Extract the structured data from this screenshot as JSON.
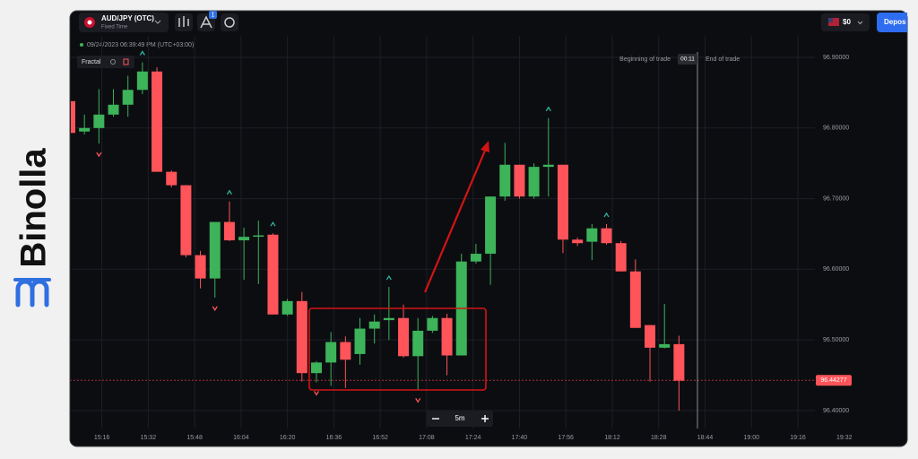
{
  "logo": "Binolla",
  "header": {
    "pair": "AUD/JPY (OTC)",
    "mode": "Fixed Time",
    "badge": "1",
    "balance": "$0",
    "deposit": "Depos"
  },
  "timestamp": "09/24/2023 06:39:49 PM (UTC+03:00)",
  "indicator": "Fractal",
  "trade": {
    "begin": "Beginning of trade",
    "timer": "00:11",
    "end": "End of trade"
  },
  "timeframe": "5m",
  "chart_data": {
    "type": "candlestick",
    "x": [
      905,
      910,
      915,
      920,
      925,
      930,
      935,
      940,
      945,
      950,
      955,
      960,
      965,
      970,
      975,
      980,
      985,
      990,
      995,
      1000,
      1005,
      1010,
      1015,
      1020,
      1025,
      1030,
      1035,
      1040,
      1045,
      1050,
      1055,
      1060,
      1065,
      1070,
      1075,
      1080,
      1085,
      1090,
      1095,
      1100,
      1105,
      1110,
      1115
    ],
    "open": [
      96.838,
      96.795,
      96.8,
      96.819,
      96.833,
      96.854,
      96.88,
      96.738,
      96.719,
      96.62,
      96.587,
      96.667,
      96.641,
      96.648,
      96.649,
      96.536,
      96.555,
      96.453,
      96.468,
      96.497,
      96.48,
      96.516,
      96.528,
      96.531,
      96.477,
      96.513,
      96.531,
      96.478,
      96.611,
      96.622,
      96.703,
      96.748,
      96.703,
      96.745,
      96.748,
      96.642,
      96.639,
      96.658,
      96.637,
      96.597,
      96.521,
      96.489,
      96.494
    ],
    "high": [
      96.861,
      96.819,
      96.855,
      96.855,
      96.874,
      96.893,
      96.886,
      96.74,
      96.719,
      96.626,
      96.667,
      96.696,
      96.659,
      96.669,
      96.651,
      96.558,
      96.568,
      96.47,
      96.511,
      96.505,
      96.531,
      96.536,
      96.575,
      96.55,
      96.531,
      96.534,
      96.537,
      96.622,
      96.636,
      96.703,
      96.779,
      96.748,
      96.75,
      96.814,
      96.748,
      96.645,
      96.664,
      96.664,
      96.64,
      96.614,
      96.521,
      96.551,
      96.506
    ],
    "low": [
      96.79,
      96.791,
      96.778,
      96.816,
      96.816,
      96.848,
      96.738,
      96.716,
      96.617,
      96.573,
      96.56,
      96.64,
      96.585,
      96.579,
      96.536,
      96.534,
      96.441,
      96.44,
      96.435,
      96.432,
      96.465,
      96.495,
      96.5,
      96.475,
      96.43,
      96.51,
      96.45,
      96.478,
      96.608,
      96.578,
      96.697,
      96.7,
      96.7,
      96.703,
      96.623,
      96.633,
      96.613,
      96.635,
      96.597,
      96.517,
      96.441,
      96.488,
      96.4
    ],
    "close": [
      96.793,
      96.8,
      96.819,
      96.833,
      96.854,
      96.88,
      96.738,
      96.719,
      96.62,
      96.587,
      96.667,
      96.641,
      96.646,
      96.648,
      96.536,
      96.555,
      96.453,
      96.468,
      96.497,
      96.472,
      96.516,
      96.526,
      96.531,
      96.477,
      96.513,
      96.531,
      96.478,
      96.611,
      96.622,
      96.703,
      96.748,
      96.703,
      96.745,
      96.748,
      96.642,
      96.637,
      96.658,
      96.637,
      96.597,
      96.517,
      96.489,
      96.494,
      96.442
    ],
    "up_color": "#3db35a",
    "down_color": "#ff5459",
    "fractals_up": [
      930,
      960,
      975,
      1015,
      1070,
      1090
    ],
    "fractals_down": [
      915,
      955,
      990,
      1025
    ],
    "current_price": 96.44277,
    "xlim": [
      905,
      1190
    ],
    "xticks": [
      {
        "value": 916,
        "label": "15:16"
      },
      {
        "value": 932,
        "label": "15:32"
      },
      {
        "value": 948,
        "label": "15:48"
      },
      {
        "value": 964,
        "label": "16:04"
      },
      {
        "value": 980,
        "label": "16:20"
      },
      {
        "value": 996,
        "label": "16:36"
      },
      {
        "value": 1012,
        "label": "16:52"
      },
      {
        "value": 1028,
        "label": "17:08"
      },
      {
        "value": 1044,
        "label": "17:24"
      },
      {
        "value": 1060,
        "label": "17:40"
      },
      {
        "value": 1076,
        "label": "17:56"
      },
      {
        "value": 1092,
        "label": "18:12"
      },
      {
        "value": 1108,
        "label": "18:28"
      },
      {
        "value": 1124,
        "label": "18:44"
      },
      {
        "value": 1140,
        "label": "19:00"
      },
      {
        "value": 1156,
        "label": "19:16"
      },
      {
        "value": 1172,
        "label": "19:32"
      }
    ],
    "ylim": [
      96.37,
      96.95
    ],
    "yticks": [
      {
        "value": 96.9,
        "label": "96.90000"
      },
      {
        "value": 96.8,
        "label": "96.80000"
      },
      {
        "value": 96.7,
        "label": "96.70000"
      },
      {
        "value": 96.6,
        "label": "96.60000"
      },
      {
        "value": 96.5,
        "label": "96.50000"
      },
      {
        "value": 96.4,
        "label": "96.40000"
      }
    ],
    "grid": true
  }
}
